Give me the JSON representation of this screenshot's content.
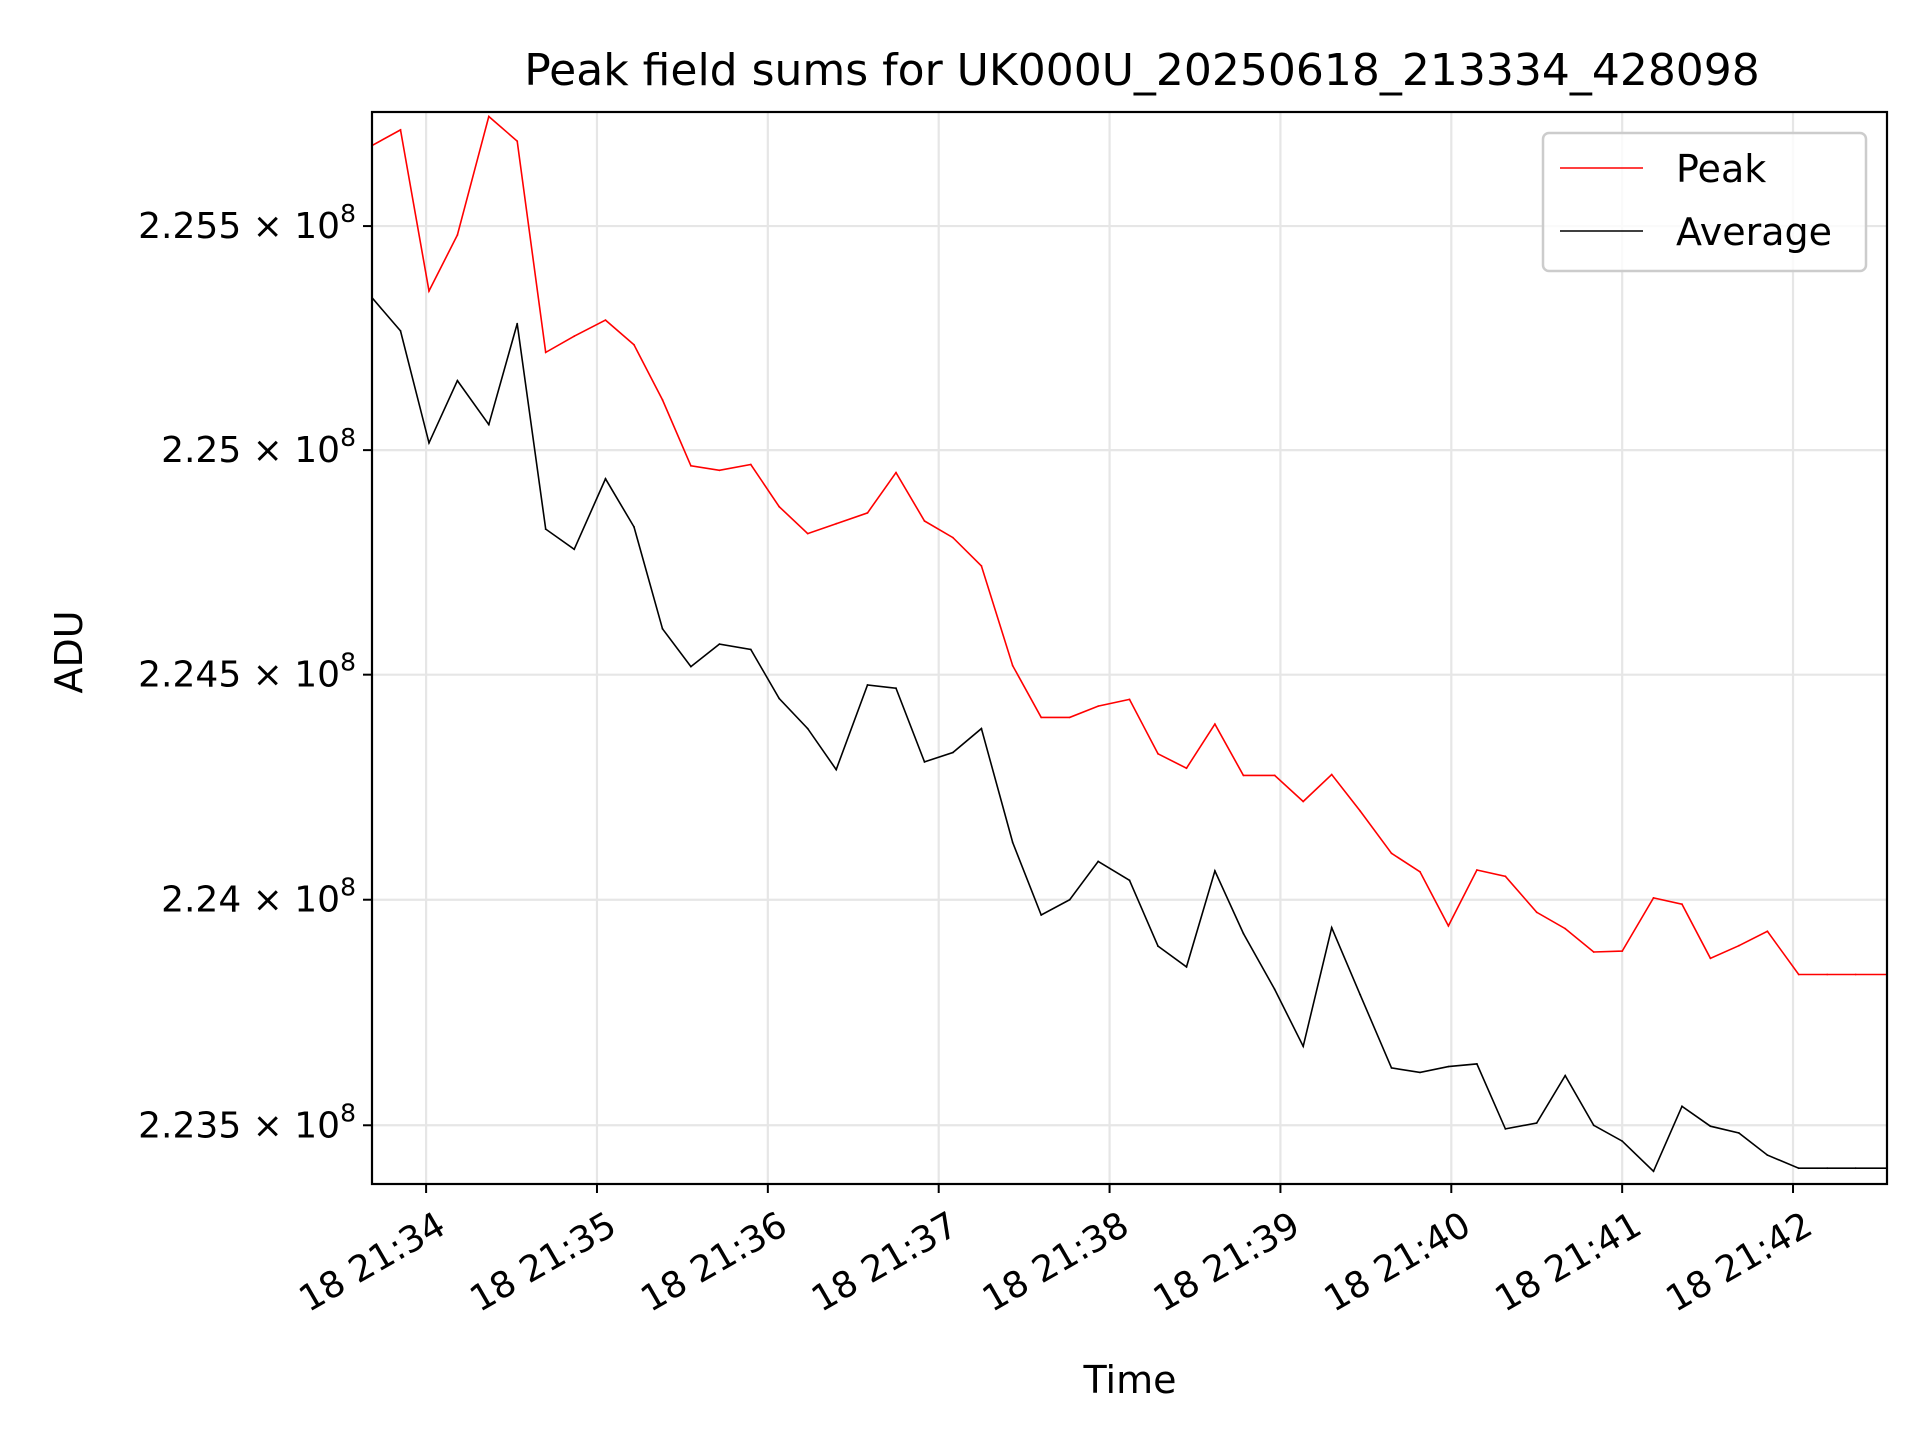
{
  "chart_data": {
    "type": "line",
    "title": "Peak field sums for UK000U_20250618_213334_428098",
    "xlabel": "Time",
    "ylabel": "ADU",
    "x_ticks": [
      "18 21:34",
      "18 21:35",
      "18 21:36",
      "18 21:37",
      "18 21:38",
      "18 21:39",
      "18 21:40",
      "18 21:41",
      "18 21:42"
    ],
    "y_ticks": [
      {
        "value": 223500000,
        "mantissa": "2.235",
        "base": "10",
        "exponent": "8"
      },
      {
        "value": 224000000,
        "mantissa": "2.24",
        "base": "10",
        "exponent": "8"
      },
      {
        "value": 224500000,
        "mantissa": "2.245",
        "base": "10",
        "exponent": "8"
      },
      {
        "value": 225000000,
        "mantissa": "2.25",
        "base": "10",
        "exponent": "8"
      },
      {
        "value": 225500000,
        "mantissa": "2.255",
        "base": "10",
        "exponent": "8"
      }
    ],
    "y_scale": "log",
    "ylim": [
      223370000,
      225755000
    ],
    "xlim": [
      "2025-06-18 21:33:41",
      "2025-06-18 21:42:33"
    ],
    "grid": true,
    "legend_position": "upper-right",
    "x": [
      "21:33:41",
      "21:33:51",
      "21:34:01",
      "21:34:11",
      "21:34:22",
      "21:34:32",
      "21:34:42",
      "21:34:52",
      "21:35:03",
      "21:35:13",
      "21:35:23",
      "21:35:33",
      "21:35:43",
      "21:35:54",
      "21:36:04",
      "21:36:14",
      "21:36:24",
      "21:36:35",
      "21:36:45",
      "21:36:55",
      "21:37:05",
      "21:37:15",
      "21:37:26",
      "21:37:36",
      "21:37:46",
      "21:37:56",
      "21:38:07",
      "21:38:17",
      "21:38:27",
      "21:38:37",
      "21:38:47",
      "21:38:58",
      "21:39:08",
      "21:39:18",
      "21:39:28",
      "21:39:39",
      "21:39:49",
      "21:39:59",
      "21:40:09",
      "21:40:19",
      "21:40:30",
      "21:40:40",
      "21:40:50",
      "21:41:00",
      "21:41:11",
      "21:41:21",
      "21:41:31",
      "21:41:41",
      "21:41:51",
      "21:42:02",
      "21:42:12",
      "21:42:22",
      "21:42:33"
    ],
    "series": [
      {
        "name": "Peak",
        "color": "#ff0000",
        "values": [
          225680000,
          225715000,
          225355000,
          225480000,
          225745000,
          225690000,
          225218000,
          225254000,
          225290000,
          225235000,
          225112000,
          224965000,
          224955000,
          224968000,
          224874000,
          224814000,
          224836000,
          224860000,
          224950000,
          224842000,
          224805000,
          224742000,
          224520000,
          224405000,
          224405000,
          224430000,
          224445000,
          224324000,
          224292000,
          224390000,
          224276000,
          224276000,
          224218000,
          224278000,
          224197000,
          224103000,
          224062000,
          223942000,
          224066000,
          224052000,
          223972000,
          223936000,
          223884000,
          223886000,
          224004000,
          223990000,
          223870000,
          223898000,
          223930000,
          223834000,
          223834000,
          223834000,
          223834000
        ]
      },
      {
        "name": "Average",
        "color": "#000000",
        "values": [
          225340000,
          225266000,
          225016000,
          225155000,
          225057000,
          225282000,
          224824000,
          224779000,
          224936000,
          224829000,
          224602000,
          224518000,
          224568000,
          224556000,
          224447000,
          224380000,
          224289000,
          224477000,
          224470000,
          224306000,
          224327000,
          224380000,
          224127000,
          223966000,
          224000000,
          224085000,
          224043000,
          223897000,
          223851000,
          224064000,
          223925000,
          223801000,
          223675000,
          223938000,
          223789000,
          223627000,
          223617000,
          223630000,
          223636000,
          223492000,
          223505000,
          223610000,
          223500000,
          223465000,
          223398000,
          223542000,
          223498000,
          223483000,
          223434000,
          223405000,
          223405000,
          223405000,
          223405000
        ]
      }
    ]
  }
}
